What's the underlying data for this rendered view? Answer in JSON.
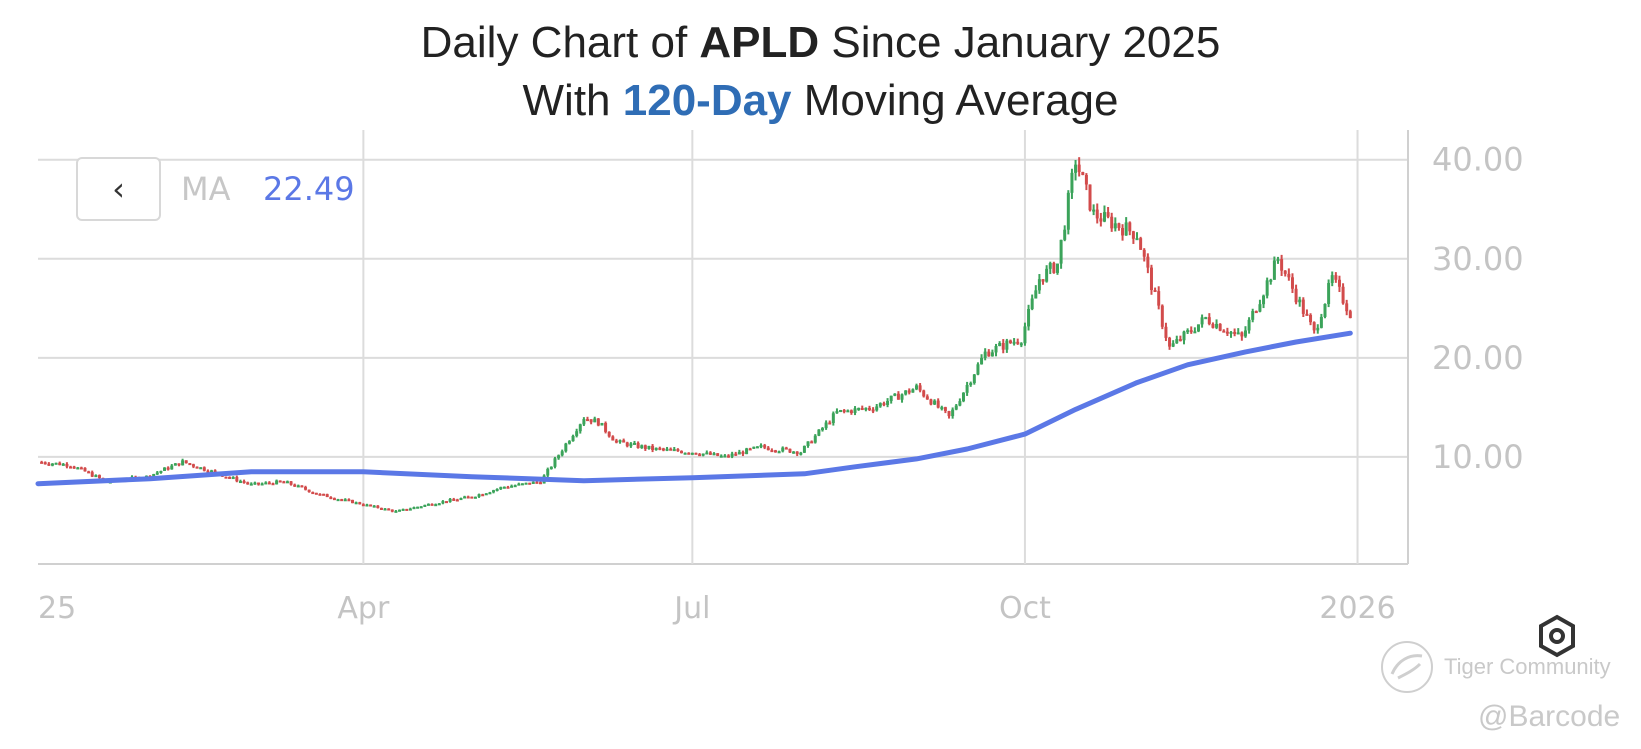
{
  "title": {
    "line1_prefix": "Daily Chart of ",
    "line1_ticker": "APLD",
    "line1_suffix": " Since January 2025",
    "line2_prefix": "With ",
    "line2_highlight": "120-Day",
    "line2_suffix": " Moving Average"
  },
  "indicator": {
    "collapse_icon": "‹",
    "label": "MA",
    "value": "22.49"
  },
  "watermark": {
    "brand": "Tiger Community",
    "handle": "@Barcode"
  },
  "colors": {
    "up": "#3ba35a",
    "down": "#d24b4b",
    "ma": "#5b78e6",
    "title_accent": "#2f6db5",
    "grid": "#dcdcdc",
    "tick": "#c4c4c4"
  },
  "icons": {
    "settings": "hexagon-settings-icon",
    "collapse": "chevron-left-icon",
    "brand_logo": "tiger-logo-icon"
  },
  "chart_data": {
    "type": "line",
    "subtype": "candlestick-with-moving-average",
    "title": "Daily Chart of APLD Since January 2025 With 120-Day Moving Average",
    "ylim": [
      0,
      43
    ],
    "y_ticks": [
      "40.00",
      "30.00",
      "20.00",
      "10.00"
    ],
    "y_tick_values": [
      40,
      30,
      20,
      10
    ],
    "x_ticks": [
      "25",
      "Apr",
      "Jul",
      "Oct",
      "2026"
    ],
    "x_tick_dates": [
      "2025-01-01",
      "2025-04-01",
      "2025-07-01",
      "2025-10-01",
      "2026-01-01"
    ],
    "xlim": [
      "2025-01-01",
      "2026-01-05"
    ],
    "grid": true,
    "y_axis_position": "right",
    "series": [
      {
        "name": "MA",
        "kind": "moving-average",
        "x": [
          "2025-01-01",
          "2025-02-01",
          "2025-03-01",
          "2025-04-01",
          "2025-05-01",
          "2025-06-01",
          "2025-07-01",
          "2025-08-01",
          "2025-08-15",
          "2025-09-01",
          "2025-09-15",
          "2025-10-01",
          "2025-10-15",
          "2025-11-01",
          "2025-11-15",
          "2025-12-01",
          "2025-12-15",
          "2025-12-30"
        ],
        "values": [
          7.3,
          7.8,
          8.5,
          8.5,
          8.0,
          7.6,
          7.9,
          8.3,
          9.0,
          9.8,
          10.8,
          12.3,
          14.8,
          17.5,
          19.3,
          20.6,
          21.6,
          22.49
        ]
      },
      {
        "name": "APLD",
        "kind": "price",
        "x": [
          "2025-01-01",
          "2025-01-10",
          "2025-01-20",
          "2025-01-31",
          "2025-02-10",
          "2025-02-20",
          "2025-03-01",
          "2025-03-10",
          "2025-03-20",
          "2025-04-01",
          "2025-04-10",
          "2025-04-20",
          "2025-05-01",
          "2025-05-10",
          "2025-05-20",
          "2025-06-01",
          "2025-06-05",
          "2025-06-10",
          "2025-06-20",
          "2025-07-01",
          "2025-07-10",
          "2025-07-20",
          "2025-07-31",
          "2025-08-10",
          "2025-08-20",
          "2025-09-01",
          "2025-09-10",
          "2025-09-20",
          "2025-09-30",
          "2025-10-05",
          "2025-10-10",
          "2025-10-15",
          "2025-10-20",
          "2025-11-01",
          "2025-11-10",
          "2025-11-20",
          "2025-11-30",
          "2025-12-10",
          "2025-12-20",
          "2025-12-25",
          "2025-12-30"
        ],
        "values": [
          9.5,
          9.2,
          7.5,
          8.0,
          9.5,
          8.3,
          7.2,
          7.5,
          6.2,
          5.2,
          4.5,
          5.3,
          6.0,
          7.0,
          7.5,
          14.0,
          13.5,
          11.5,
          10.8,
          10.5,
          10.0,
          11.0,
          10.5,
          14.5,
          15.0,
          17.0,
          14.0,
          20.5,
          22.0,
          28.0,
          29.5,
          40.0,
          34.5,
          32.5,
          21.0,
          24.0,
          22.0,
          30.0,
          22.5,
          28.0,
          24.5
        ]
      }
    ]
  }
}
